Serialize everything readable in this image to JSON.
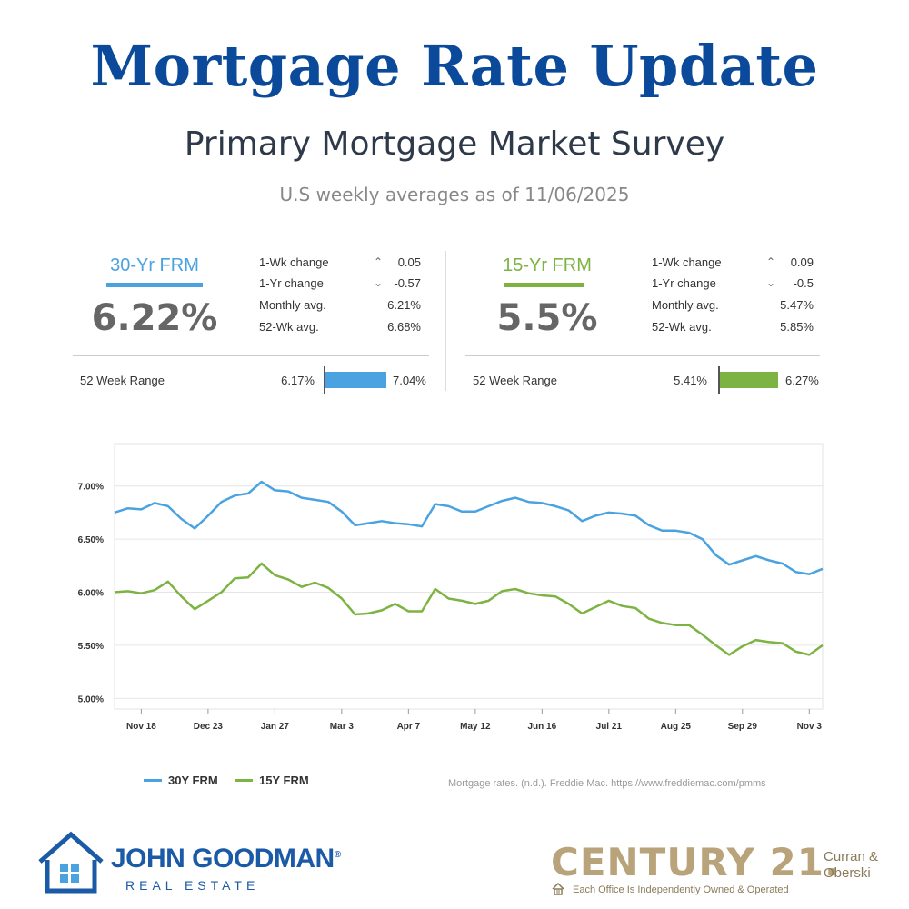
{
  "header": {
    "title": "Mortgage Rate Update",
    "subtitle": "Primary Mortgage Market Survey",
    "as_of": "U.S weekly averages as of 11/06/2025"
  },
  "panels": [
    {
      "label": "30-Yr FRM",
      "color": "#4aa3e0",
      "rate": "6.22%",
      "stats": [
        {
          "label": "1-Wk change",
          "arrow": "^",
          "value": "0.05"
        },
        {
          "label": "1-Yr change",
          "arrow": "v",
          "value": "-0.57"
        },
        {
          "label": "Monthly avg.",
          "arrow": "",
          "value": "6.21%"
        },
        {
          "label": "52-Wk avg.",
          "arrow": "",
          "value": "6.68%"
        }
      ],
      "range_label": "52 Week Range",
      "range_min": "6.17%",
      "range_max": "7.04%"
    },
    {
      "label": "15-Yr FRM",
      "color": "#7cb342",
      "rate": "5.5%",
      "stats": [
        {
          "label": "1-Wk change",
          "arrow": "^",
          "value": "0.09"
        },
        {
          "label": "1-Yr change",
          "arrow": "v",
          "value": "-0.5"
        },
        {
          "label": "Monthly avg.",
          "arrow": "",
          "value": "5.47%"
        },
        {
          "label": "52-Wk avg.",
          "arrow": "",
          "value": "5.85%"
        }
      ],
      "range_label": "52 Week Range",
      "range_min": "5.41%",
      "range_max": "6.27%"
    }
  ],
  "chart_data": {
    "type": "line",
    "ylim": [
      4.9,
      7.4
    ],
    "y_ticks": [
      5.0,
      5.5,
      6.0,
      6.5,
      7.0
    ],
    "y_tick_labels": [
      "5.00%",
      "5.50%",
      "6.00%",
      "6.50%",
      "7.00%"
    ],
    "x_tick_labels": [
      "Nov 18",
      "Dec 23",
      "Jan 27",
      "Mar 3",
      "Apr 7",
      "May 12",
      "Jun 16",
      "Jul 21",
      "Aug 25",
      "Sep 29",
      "Nov 3"
    ],
    "x_tick_index": [
      2,
      7,
      12,
      17,
      22,
      27,
      32,
      37,
      42,
      47,
      52
    ],
    "grid": true,
    "legend_position": "bottom-left",
    "series": [
      {
        "name": "30Y FRM",
        "color": "#4aa3e0",
        "values": [
          6.75,
          6.79,
          6.78,
          6.84,
          6.81,
          6.69,
          6.6,
          6.72,
          6.85,
          6.91,
          6.93,
          7.04,
          6.96,
          6.95,
          6.89,
          6.87,
          6.85,
          6.76,
          6.63,
          6.65,
          6.67,
          6.65,
          6.64,
          6.62,
          6.83,
          6.81,
          6.76,
          6.76,
          6.81,
          6.86,
          6.89,
          6.85,
          6.84,
          6.81,
          6.77,
          6.67,
          6.72,
          6.75,
          6.74,
          6.72,
          6.63,
          6.58,
          6.58,
          6.56,
          6.5,
          6.35,
          6.26,
          6.3,
          6.34,
          6.3,
          6.27,
          6.19,
          6.17,
          6.22
        ]
      },
      {
        "name": "15Y FRM",
        "color": "#7cb342",
        "values": [
          6.0,
          6.01,
          5.99,
          6.02,
          6.1,
          5.96,
          5.84,
          5.92,
          6.0,
          6.13,
          6.14,
          6.27,
          6.16,
          6.12,
          6.05,
          6.09,
          6.04,
          5.94,
          5.79,
          5.8,
          5.83,
          5.89,
          5.82,
          5.82,
          6.03,
          5.94,
          5.92,
          5.89,
          5.92,
          6.01,
          6.03,
          5.99,
          5.97,
          5.96,
          5.89,
          5.8,
          5.86,
          5.92,
          5.87,
          5.85,
          5.75,
          5.71,
          5.69,
          5.69,
          5.6,
          5.5,
          5.41,
          5.49,
          5.55,
          5.53,
          5.52,
          5.44,
          5.41,
          5.5
        ]
      }
    ]
  },
  "legend": [
    {
      "name": "30Y FRM",
      "color": "#4aa3e0"
    },
    {
      "name": "15Y FRM",
      "color": "#7cb342"
    }
  ],
  "source": "Mortgage rates. (n.d.). Freddie Mac. https://www.freddiemac.com/pmms",
  "branding": {
    "jg_name": "JOHN GOODMAN",
    "jg_reg": "®",
    "jg_sub": "REAL ESTATE",
    "c21_name": "CENTURY 21.",
    "c21_office": "Curran & Oberski",
    "c21_tag": "Each Office Is Independently Owned & Operated"
  }
}
